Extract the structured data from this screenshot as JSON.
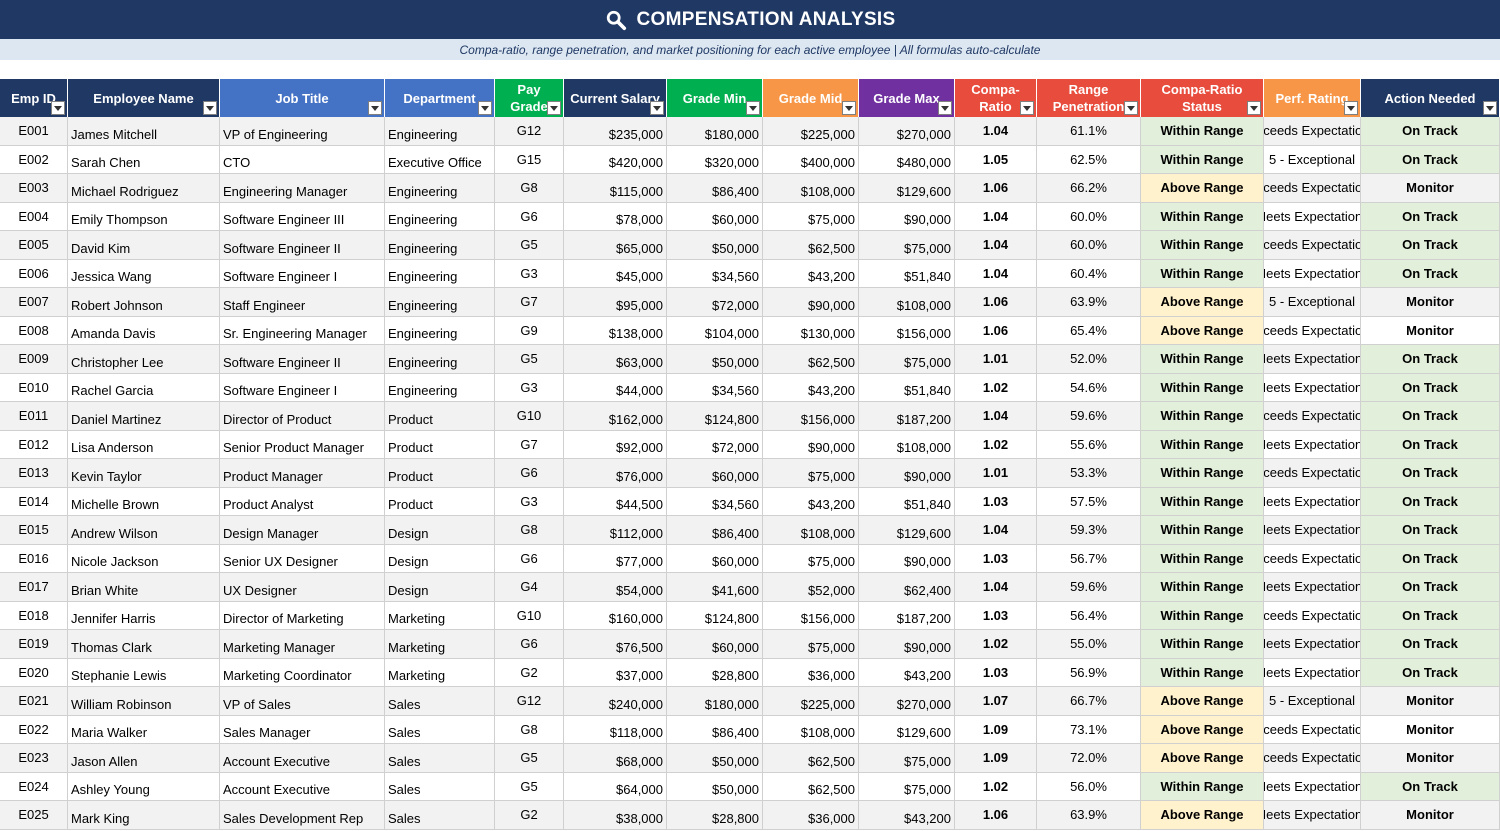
{
  "title": "COMPENSATION ANALYSIS",
  "title_icon": "search-icon",
  "subtitle": "Compa-ratio, range penetration, and market positioning for each active employee  |  All formulas auto-calculate",
  "colors": {
    "title_bg": "#1f3864",
    "header_navy": "#1f3864",
    "header_blue": "#4472c4",
    "header_green": "#00b050",
    "header_orange": "#f79646",
    "header_purple": "#7030a0",
    "header_red": "#e74c3c",
    "within_range_bg": "#e2efda",
    "above_range_bg": "#fff2cc"
  },
  "columns": [
    {
      "key": "id",
      "label": "Emp ID"
    },
    {
      "key": "name",
      "label": "Employee Name"
    },
    {
      "key": "title",
      "label": "Job Title"
    },
    {
      "key": "dept",
      "label": "Department"
    },
    {
      "key": "grade",
      "label": "Pay Grade"
    },
    {
      "key": "salary",
      "label": "Current Salary"
    },
    {
      "key": "min",
      "label": "Grade Min"
    },
    {
      "key": "mid",
      "label": "Grade Mid"
    },
    {
      "key": "max",
      "label": "Grade Max"
    },
    {
      "key": "ratio",
      "label": "Compa-Ratio"
    },
    {
      "key": "pen",
      "label": "Range Penetration"
    },
    {
      "key": "status",
      "label": "Compa-Ratio Status"
    },
    {
      "key": "perf",
      "label": "Perf. Rating"
    },
    {
      "key": "action",
      "label": "Action Needed"
    }
  ],
  "rows": [
    [
      "E001",
      "James Mitchell",
      "VP of Engineering",
      "Engineering",
      "G12",
      "$235,000",
      "$180,000",
      "$225,000",
      "$270,000",
      "1.04",
      "61.1%",
      "Within Range",
      "Exceeds Expectations",
      "On Track"
    ],
    [
      "E002",
      "Sarah Chen",
      "CTO",
      "Executive Office",
      "G15",
      "$420,000",
      "$320,000",
      "$400,000",
      "$480,000",
      "1.05",
      "62.5%",
      "Within Range",
      "5 - Exceptional",
      "On Track"
    ],
    [
      "E003",
      "Michael Rodriguez",
      "Engineering Manager",
      "Engineering",
      "G8",
      "$115,000",
      "$86,400",
      "$108,000",
      "$129,600",
      "1.06",
      "66.2%",
      "Above Range",
      "Exceeds Expectations",
      "Monitor"
    ],
    [
      "E004",
      "Emily Thompson",
      "Software Engineer III",
      "Engineering",
      "G6",
      "$78,000",
      "$60,000",
      "$75,000",
      "$90,000",
      "1.04",
      "60.0%",
      "Within Range",
      "Meets Expectations",
      "On Track"
    ],
    [
      "E005",
      "David Kim",
      "Software Engineer II",
      "Engineering",
      "G5",
      "$65,000",
      "$50,000",
      "$62,500",
      "$75,000",
      "1.04",
      "60.0%",
      "Within Range",
      "Exceeds Expectations",
      "On Track"
    ],
    [
      "E006",
      "Jessica Wang",
      "Software Engineer I",
      "Engineering",
      "G3",
      "$45,000",
      "$34,560",
      "$43,200",
      "$51,840",
      "1.04",
      "60.4%",
      "Within Range",
      "Meets Expectations",
      "On Track"
    ],
    [
      "E007",
      "Robert Johnson",
      "Staff Engineer",
      "Engineering",
      "G7",
      "$95,000",
      "$72,000",
      "$90,000",
      "$108,000",
      "1.06",
      "63.9%",
      "Above Range",
      "5 - Exceptional",
      "Monitor"
    ],
    [
      "E008",
      "Amanda Davis",
      "Sr. Engineering Manager",
      "Engineering",
      "G9",
      "$138,000",
      "$104,000",
      "$130,000",
      "$156,000",
      "1.06",
      "65.4%",
      "Above Range",
      "Exceeds Expectations",
      "Monitor"
    ],
    [
      "E009",
      "Christopher Lee",
      "Software Engineer II",
      "Engineering",
      "G5",
      "$63,000",
      "$50,000",
      "$62,500",
      "$75,000",
      "1.01",
      "52.0%",
      "Within Range",
      "Meets Expectations",
      "On Track"
    ],
    [
      "E010",
      "Rachel Garcia",
      "Software Engineer I",
      "Engineering",
      "G3",
      "$44,000",
      "$34,560",
      "$43,200",
      "$51,840",
      "1.02",
      "54.6%",
      "Within Range",
      "Meets Expectations",
      "On Track"
    ],
    [
      "E011",
      "Daniel Martinez",
      "Director of Product",
      "Product",
      "G10",
      "$162,000",
      "$124,800",
      "$156,000",
      "$187,200",
      "1.04",
      "59.6%",
      "Within Range",
      "Exceeds Expectations",
      "On Track"
    ],
    [
      "E012",
      "Lisa Anderson",
      "Senior Product Manager",
      "Product",
      "G7",
      "$92,000",
      "$72,000",
      "$90,000",
      "$108,000",
      "1.02",
      "55.6%",
      "Within Range",
      "Meets Expectations",
      "On Track"
    ],
    [
      "E013",
      "Kevin Taylor",
      "Product Manager",
      "Product",
      "G6",
      "$76,000",
      "$60,000",
      "$75,000",
      "$90,000",
      "1.01",
      "53.3%",
      "Within Range",
      "Exceeds Expectations",
      "On Track"
    ],
    [
      "E014",
      "Michelle Brown",
      "Product Analyst",
      "Product",
      "G3",
      "$44,500",
      "$34,560",
      "$43,200",
      "$51,840",
      "1.03",
      "57.5%",
      "Within Range",
      "Meets Expectations",
      "On Track"
    ],
    [
      "E015",
      "Andrew Wilson",
      "Design Manager",
      "Design",
      "G8",
      "$112,000",
      "$86,400",
      "$108,000",
      "$129,600",
      "1.04",
      "59.3%",
      "Within Range",
      "Meets Expectations",
      "On Track"
    ],
    [
      "E016",
      "Nicole Jackson",
      "Senior UX Designer",
      "Design",
      "G6",
      "$77,000",
      "$60,000",
      "$75,000",
      "$90,000",
      "1.03",
      "56.7%",
      "Within Range",
      "Exceeds Expectations",
      "On Track"
    ],
    [
      "E017",
      "Brian White",
      "UX Designer",
      "Design",
      "G4",
      "$54,000",
      "$41,600",
      "$52,000",
      "$62,400",
      "1.04",
      "59.6%",
      "Within Range",
      "Meets Expectations",
      "On Track"
    ],
    [
      "E018",
      "Jennifer Harris",
      "Director of Marketing",
      "Marketing",
      "G10",
      "$160,000",
      "$124,800",
      "$156,000",
      "$187,200",
      "1.03",
      "56.4%",
      "Within Range",
      "Exceeds Expectations",
      "On Track"
    ],
    [
      "E019",
      "Thomas Clark",
      "Marketing Manager",
      "Marketing",
      "G6",
      "$76,500",
      "$60,000",
      "$75,000",
      "$90,000",
      "1.02",
      "55.0%",
      "Within Range",
      "Meets Expectations",
      "On Track"
    ],
    [
      "E020",
      "Stephanie Lewis",
      "Marketing Coordinator",
      "Marketing",
      "G2",
      "$37,000",
      "$28,800",
      "$36,000",
      "$43,200",
      "1.03",
      "56.9%",
      "Within Range",
      "Meets Expectations",
      "On Track"
    ],
    [
      "E021",
      "William Robinson",
      "VP of Sales",
      "Sales",
      "G12",
      "$240,000",
      "$180,000",
      "$225,000",
      "$270,000",
      "1.07",
      "66.7%",
      "Above Range",
      "5 - Exceptional",
      "Monitor"
    ],
    [
      "E022",
      "Maria Walker",
      "Sales Manager",
      "Sales",
      "G8",
      "$118,000",
      "$86,400",
      "$108,000",
      "$129,600",
      "1.09",
      "73.1%",
      "Above Range",
      "Exceeds Expectations",
      "Monitor"
    ],
    [
      "E023",
      "Jason Allen",
      "Account Executive",
      "Sales",
      "G5",
      "$68,000",
      "$50,000",
      "$62,500",
      "$75,000",
      "1.09",
      "72.0%",
      "Above Range",
      "Exceeds Expectations",
      "Monitor"
    ],
    [
      "E024",
      "Ashley Young",
      "Account Executive",
      "Sales",
      "G5",
      "$64,000",
      "$50,000",
      "$62,500",
      "$75,000",
      "1.02",
      "56.0%",
      "Within Range",
      "Meets Expectations",
      "On Track"
    ],
    [
      "E025",
      "Mark King",
      "Sales Development Rep",
      "Sales",
      "G2",
      "$38,000",
      "$28,800",
      "$36,000",
      "$43,200",
      "1.06",
      "63.9%",
      "Above Range",
      "Meets Expectations",
      "Monitor"
    ]
  ]
}
